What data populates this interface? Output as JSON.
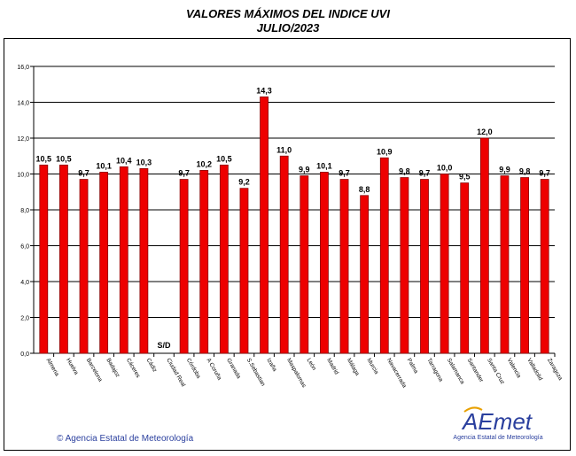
{
  "chart_data": {
    "type": "bar",
    "title": "VALORES MÁXIMOS DEL INDICE UVI",
    "subtitle": "JULIO/2023",
    "categories": [
      "Almeria",
      "Huelva",
      "Barcelona",
      "Badajoz",
      "Cáceres",
      "Cádiz",
      "Ciudad Real",
      "Córdoba",
      "A Coruña",
      "Granada",
      "S.Sebastian",
      "Izaña",
      "Maspalomas",
      "León",
      "Madrid",
      "Málaga",
      "Murcia",
      "Navacerrada",
      "Palma",
      "Tarragona",
      "Salamanca",
      "Santander",
      "Santa Cruz",
      "Valencia",
      "Valladolid",
      "Zaragoza"
    ],
    "values": [
      10.5,
      10.5,
      9.7,
      10.1,
      10.4,
      10.3,
      null,
      9.7,
      10.2,
      10.5,
      9.2,
      14.3,
      11.0,
      9.9,
      10.1,
      9.7,
      8.8,
      10.9,
      9.8,
      9.7,
      10.0,
      9.5,
      12.0,
      9.9,
      9.8,
      9.7
    ],
    "value_labels": [
      "10,5",
      "10,5",
      "9,7",
      "10,1",
      "10,4",
      "10,3",
      "S/D",
      "9,7",
      "10,2",
      "10,5",
      "9,2",
      "14,3",
      "11,0",
      "9,9",
      "10,1",
      "9,7",
      "8,8",
      "10,9",
      "9,8",
      "9,7",
      "10,0",
      "9,5",
      "12,0",
      "9,9",
      "9,8",
      "9,7"
    ],
    "y_ticks": [
      "0,0",
      "2,0",
      "4,0",
      "6,0",
      "8,0",
      "10,0",
      "12,0",
      "14,0",
      "16,0"
    ],
    "ylim": [
      0,
      16
    ],
    "grid": true,
    "bar_color": "#ee0000",
    "bar_border_color": "#8b0000"
  },
  "footer": {
    "copyright": "© Agencia Estatal de Meteorología"
  },
  "logo": {
    "text": "AEmet",
    "subtitle": "Agencia Estatal de Meteorología",
    "color": "#2a3f9e",
    "accent": "#e8a000"
  }
}
